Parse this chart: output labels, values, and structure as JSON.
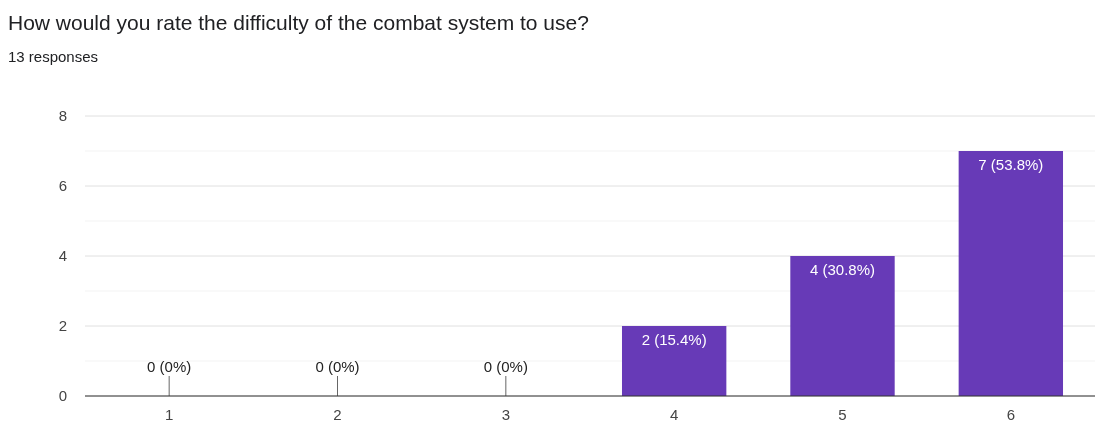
{
  "chart_data": {
    "type": "bar",
    "title": "How would you rate the difficulty of the combat system to use?",
    "subtitle": "13 responses",
    "categories": [
      "1",
      "2",
      "3",
      "4",
      "5",
      "6"
    ],
    "values": [
      0,
      0,
      0,
      2,
      4,
      7
    ],
    "value_labels": [
      "0 (0%)",
      "0 (0%)",
      "0 (0%)",
      "2 (15.4%)",
      "4 (30.8%)",
      "7 (53.8%)"
    ],
    "color": "#673ab7",
    "ylim": [
      0,
      8
    ],
    "yticks": [
      0,
      {
        "value": 1,
        "label": null
      },
      2,
      {
        "value": 3,
        "label": null
      },
      4,
      {
        "value": 5,
        "label": null
      },
      6,
      {
        "value": 7,
        "label": null
      },
      8
    ],
    "grid": "y"
  }
}
